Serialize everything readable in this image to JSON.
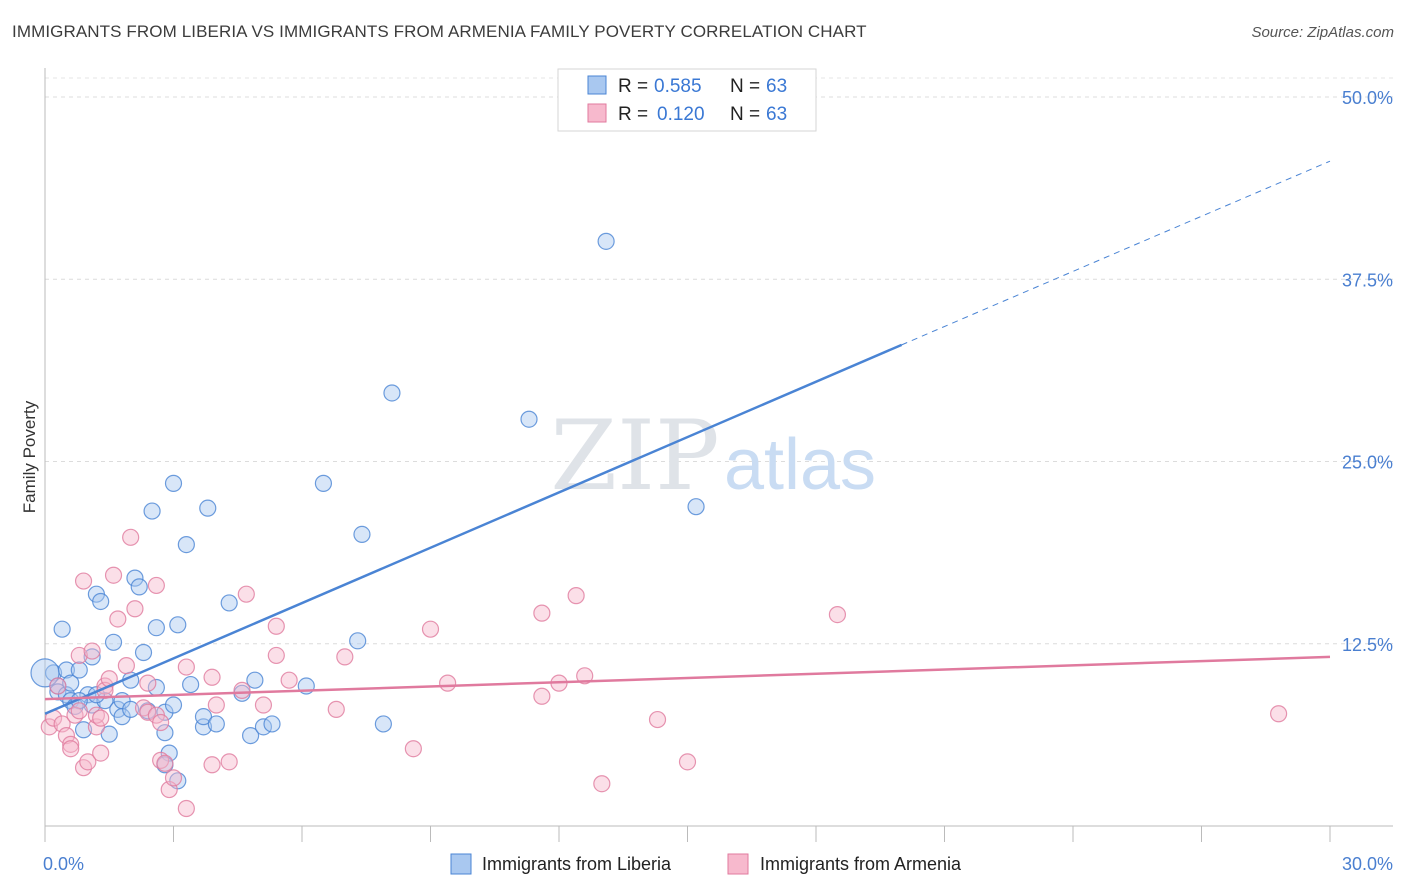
{
  "header": {
    "title": "IMMIGRANTS FROM LIBERIA VS IMMIGRANTS FROM ARMENIA FAMILY POVERTY CORRELATION CHART",
    "source": "Source: ZipAtlas.com"
  },
  "watermark": {
    "zip": "ZIP",
    "atlas": "atlas"
  },
  "legend": {
    "rows": [
      {
        "r_label": "R =",
        "r_value": "0.585",
        "n_label": "N =",
        "n_value": "63",
        "color": "#a9c8f0",
        "stroke": "#4a84d4"
      },
      {
        "r_label": "R =",
        "r_value": "0.120",
        "n_label": "N =",
        "n_value": "63",
        "color": "#f7b9cd",
        "stroke": "#e07a9e"
      }
    ]
  },
  "bottom_legend": [
    {
      "label": "Immigrants from Liberia",
      "color": "#a9c8f0",
      "stroke": "#4a84d4"
    },
    {
      "label": "Immigrants from Armenia",
      "color": "#f7b9cd",
      "stroke": "#e07a9e"
    }
  ],
  "chart_data": {
    "type": "scatter",
    "title": "IMMIGRANTS FROM LIBERIA VS IMMIGRANTS FROM ARMENIA FAMILY POVERTY CORRELATION CHART",
    "xlabel": "",
    "ylabel": "Family Poverty",
    "xlim": [
      0,
      30
    ],
    "ylim": [
      0,
      50
    ],
    "x_tick_labels": [
      "0.0%",
      "30.0%"
    ],
    "y_ticks": [
      12.5,
      25.0,
      37.5,
      50.0
    ],
    "y_tick_labels": [
      "12.5%",
      "25.0%",
      "37.5%",
      "50.0%"
    ],
    "grid": "horizontal dashed",
    "series": [
      {
        "name": "Immigrants from Liberia",
        "color": "#4a84d4",
        "fill": "#a9c8f0",
        "trend": {
          "x": [
            0,
            20
          ],
          "y": [
            7.7,
            33.0
          ],
          "dashed_to": [
            30,
            45.6
          ]
        },
        "points": [
          [
            0.2,
            10.5
          ],
          [
            0.3,
            9.6
          ],
          [
            0.3,
            9.2
          ],
          [
            0.5,
            9.0
          ],
          [
            0.4,
            13.5
          ],
          [
            0.5,
            10.7
          ],
          [
            0.6,
            9.8
          ],
          [
            0.6,
            8.6
          ],
          [
            0.7,
            8.2
          ],
          [
            0.8,
            10.7
          ],
          [
            0.9,
            6.6
          ],
          [
            1.0,
            9.0
          ],
          [
            1.1,
            8.3
          ],
          [
            1.1,
            11.6
          ],
          [
            1.2,
            15.9
          ],
          [
            1.3,
            15.4
          ],
          [
            1.4,
            8.6
          ],
          [
            1.5,
            6.3
          ],
          [
            1.6,
            12.6
          ],
          [
            1.7,
            8.0
          ],
          [
            1.8,
            7.5
          ],
          [
            1.8,
            8.6
          ],
          [
            2.0,
            10.0
          ],
          [
            2.0,
            8.0
          ],
          [
            2.1,
            17.0
          ],
          [
            2.2,
            16.4
          ],
          [
            2.3,
            11.9
          ],
          [
            2.4,
            7.9
          ],
          [
            2.5,
            21.6
          ],
          [
            2.6,
            9.5
          ],
          [
            2.6,
            13.6
          ],
          [
            2.8,
            6.4
          ],
          [
            2.8,
            7.8
          ],
          [
            2.9,
            5.0
          ],
          [
            2.8,
            4.2
          ],
          [
            3.0,
            23.5
          ],
          [
            3.0,
            8.3
          ],
          [
            3.1,
            3.1
          ],
          [
            3.1,
            13.8
          ],
          [
            3.3,
            19.3
          ],
          [
            3.4,
            9.7
          ],
          [
            3.7,
            6.8
          ],
          [
            3.7,
            7.5
          ],
          [
            3.8,
            21.8
          ],
          [
            4.0,
            7.0
          ],
          [
            4.3,
            15.3
          ],
          [
            4.6,
            9.1
          ],
          [
            4.8,
            6.2
          ],
          [
            4.9,
            10.0
          ],
          [
            5.1,
            6.8
          ],
          [
            5.3,
            7.0
          ],
          [
            6.1,
            9.6
          ],
          [
            6.5,
            23.5
          ],
          [
            7.3,
            12.7
          ],
          [
            7.4,
            20.0
          ],
          [
            7.9,
            7.0
          ],
          [
            8.1,
            29.7
          ],
          [
            11.3,
            27.9
          ],
          [
            13.1,
            40.1
          ],
          [
            15.2,
            21.9
          ],
          [
            0.0,
            10.5
          ],
          [
            1.2,
            9.0
          ],
          [
            0.8,
            8.6
          ]
        ]
      },
      {
        "name": "Immigrants from Armenia",
        "color": "#e07a9e",
        "fill": "#f7b9cd",
        "trend": {
          "x": [
            0,
            30
          ],
          "y": [
            8.7,
            11.6
          ]
        },
        "points": [
          [
            0.1,
            6.8
          ],
          [
            0.2,
            7.4
          ],
          [
            0.3,
            9.6
          ],
          [
            0.4,
            7.0
          ],
          [
            0.5,
            6.2
          ],
          [
            0.6,
            5.6
          ],
          [
            0.6,
            5.3
          ],
          [
            0.7,
            7.6
          ],
          [
            0.8,
            11.7
          ],
          [
            0.8,
            7.9
          ],
          [
            0.9,
            4.0
          ],
          [
            0.9,
            16.8
          ],
          [
            1.0,
            4.4
          ],
          [
            1.1,
            12.0
          ],
          [
            1.2,
            6.8
          ],
          [
            1.2,
            7.6
          ],
          [
            1.3,
            7.4
          ],
          [
            1.3,
            5.0
          ],
          [
            1.4,
            9.6
          ],
          [
            1.4,
            9.3
          ],
          [
            1.5,
            10.1
          ],
          [
            1.6,
            17.2
          ],
          [
            1.7,
            14.2
          ],
          [
            1.9,
            11.0
          ],
          [
            2.0,
            19.8
          ],
          [
            2.1,
            14.9
          ],
          [
            2.3,
            8.1
          ],
          [
            2.4,
            9.8
          ],
          [
            2.4,
            7.8
          ],
          [
            2.6,
            7.6
          ],
          [
            2.6,
            16.5
          ],
          [
            2.7,
            7.1
          ],
          [
            2.7,
            4.5
          ],
          [
            2.8,
            4.3
          ],
          [
            2.9,
            2.5
          ],
          [
            3.0,
            3.3
          ],
          [
            3.3,
            10.9
          ],
          [
            3.3,
            1.2
          ],
          [
            3.9,
            4.2
          ],
          [
            3.9,
            10.2
          ],
          [
            4.0,
            8.3
          ],
          [
            4.3,
            4.4
          ],
          [
            4.6,
            9.3
          ],
          [
            4.7,
            15.9
          ],
          [
            5.1,
            8.3
          ],
          [
            5.4,
            13.7
          ],
          [
            5.4,
            11.7
          ],
          [
            5.7,
            10.0
          ],
          [
            6.8,
            8.0
          ],
          [
            7.0,
            11.6
          ],
          [
            8.6,
            5.3
          ],
          [
            9.0,
            13.5
          ],
          [
            9.4,
            9.8
          ],
          [
            11.6,
            8.9
          ],
          [
            11.6,
            14.6
          ],
          [
            12.0,
            9.8
          ],
          [
            12.4,
            15.8
          ],
          [
            12.6,
            10.3
          ],
          [
            13.0,
            2.9
          ],
          [
            14.3,
            7.3
          ],
          [
            15.0,
            4.4
          ],
          [
            18.5,
            14.5
          ],
          [
            28.8,
            7.7
          ]
        ]
      }
    ]
  }
}
